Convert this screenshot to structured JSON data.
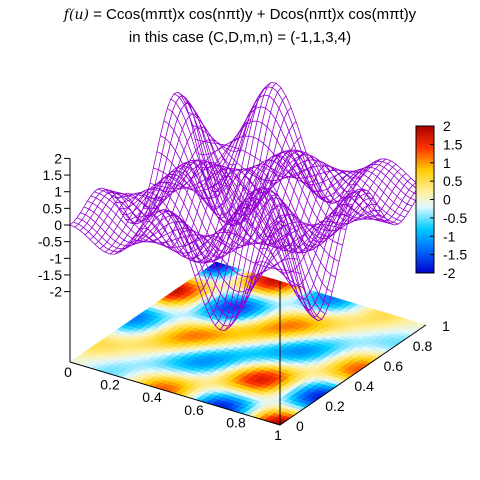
{
  "title": {
    "line1_math": "f(u)",
    "line1_rest": " = Ccos(mπt)x cos(nπt)y + Dcos(nπt)x cos(mπt)y",
    "line2": "in this case   (C,D,m,n) = (-1,1,3,4)"
  },
  "chart_data": {
    "type": "surface3d",
    "function": "C*cos(m*pi*x)*cos(n*pi*y) + D*cos(n*pi*x)*cos(m*pi*y)",
    "params": {
      "C": -1,
      "D": 1,
      "m": 3,
      "n": 4
    },
    "xlim": [
      0,
      1
    ],
    "ylim": [
      0,
      1
    ],
    "zlim": [
      -2,
      2
    ],
    "x_ticks": [
      "0",
      "0.2",
      "0.4",
      "0.6",
      "0.8",
      "1"
    ],
    "y_ticks": [
      "0",
      "0.2",
      "0.4",
      "0.6",
      "0.8",
      "1"
    ],
    "z_ticks": [
      "2",
      "1.5",
      "1",
      "0.5",
      "0",
      "-0.5",
      "-1",
      "-1.5",
      "-2"
    ],
    "colorbar_ticks": [
      "2",
      "1.5",
      "1",
      "0.5",
      "0",
      "-0.5",
      "-1",
      "-1.5",
      "-2"
    ],
    "colorbar_range": [
      -2,
      2
    ],
    "mesh_color": "#9400D3",
    "colormap": "jet",
    "projection_at_base": true
  }
}
